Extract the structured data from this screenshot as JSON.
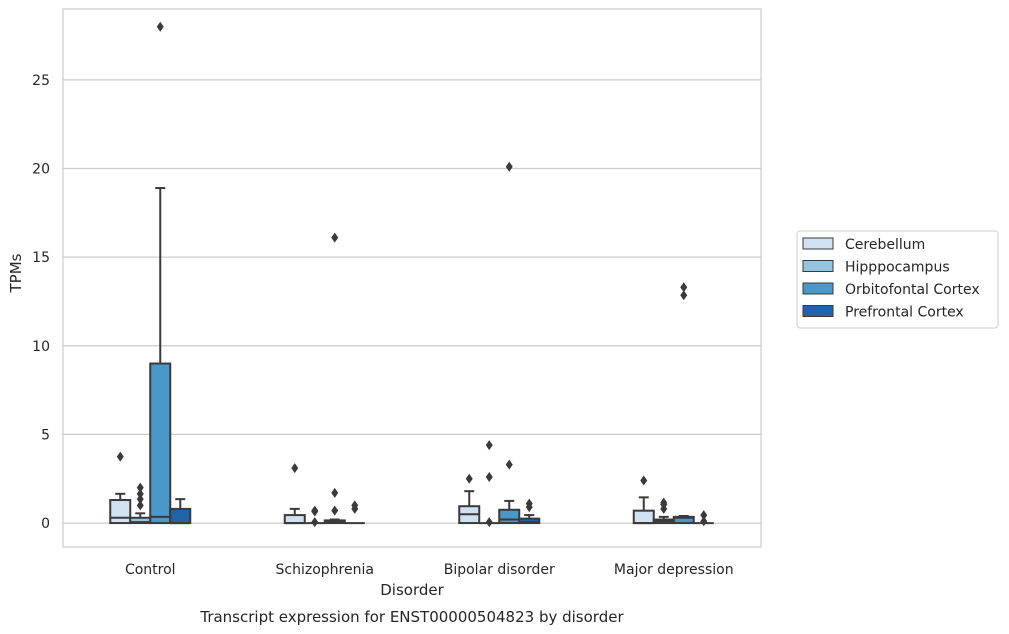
{
  "chart_data": {
    "type": "box",
    "caption": "Transcript expression for ENST00000504823 by disorder",
    "xlabel": "Disorder",
    "ylabel": "TPMs",
    "ylim": [
      -1.35,
      29.0
    ],
    "yticks": [
      0,
      5,
      10,
      15,
      20,
      25
    ],
    "grid": "horizontal",
    "legend_position": "right",
    "categories": [
      "Control",
      "Schizophrenia",
      "Bipolar disorder",
      "Major depression"
    ],
    "series": [
      {
        "name": "Cerebellum",
        "color": "#d0e1f2",
        "boxes": [
          {
            "whislo": 0,
            "q1": 0,
            "med": 0.3,
            "q3": 1.3,
            "whishi": 1.65,
            "fliers": [
              3.75
            ]
          },
          {
            "whislo": 0,
            "q1": 0,
            "med": 0,
            "q3": 0.45,
            "whishi": 0.8,
            "fliers": [
              3.1
            ]
          },
          {
            "whislo": 0,
            "q1": 0,
            "med": 0.5,
            "q3": 0.95,
            "whishi": 1.8,
            "fliers": [
              2.5
            ]
          },
          {
            "whislo": 0,
            "q1": 0,
            "med": 0,
            "q3": 0.7,
            "whishi": 1.45,
            "fliers": [
              2.4
            ]
          }
        ]
      },
      {
        "name": "Hipppocampus",
        "color": "#94c4df",
        "boxes": [
          {
            "whislo": 0,
            "q1": 0,
            "med": 0.05,
            "q3": 0.3,
            "whishi": 0.55,
            "fliers": [
              1.0,
              1.35,
              1.65,
              2.0
            ]
          },
          {
            "whislo": 0,
            "q1": 0,
            "med": 0,
            "q3": 0,
            "whishi": 0,
            "fliers": [
              0.05,
              0.65,
              0.7
            ]
          },
          {
            "whislo": 0,
            "q1": 0,
            "med": 0,
            "q3": 0,
            "whishi": 0,
            "fliers": [
              0.05,
              2.6,
              4.4
            ]
          },
          {
            "whislo": 0,
            "q1": 0,
            "med": 0.1,
            "q3": 0.2,
            "whishi": 0.35,
            "fliers": [
              0.8,
              1.05,
              1.15
            ]
          }
        ]
      },
      {
        "name": "Orbitofontal Cortex",
        "color": "#4a98c9",
        "boxes": [
          {
            "whislo": 0,
            "q1": 0,
            "med": 0.35,
            "q3": 9.0,
            "whishi": 18.9,
            "fliers": [
              28.0
            ]
          },
          {
            "whislo": 0,
            "q1": 0,
            "med": 0.05,
            "q3": 0.15,
            "whishi": 0.2,
            "fliers": [
              0.7,
              1.7,
              16.1
            ]
          },
          {
            "whislo": 0,
            "q1": 0,
            "med": 0.2,
            "q3": 0.75,
            "whishi": 1.25,
            "fliers": [
              3.3,
              20.1
            ]
          },
          {
            "whislo": 0,
            "q1": 0,
            "med": 0.3,
            "q3": 0.35,
            "whishi": 0.4,
            "fliers": [
              12.85,
              13.3
            ]
          }
        ]
      },
      {
        "name": "Prefrontal Cortex",
        "color": "#2163aa",
        "boxes": [
          {
            "whislo": 0,
            "q1": 0,
            "med": 0,
            "q3": 0.8,
            "whishi": 1.35,
            "fliers": []
          },
          {
            "whislo": 0,
            "q1": 0,
            "med": 0,
            "q3": 0,
            "whishi": 0,
            "fliers": [
              0.8,
              1.0
            ]
          },
          {
            "whislo": 0,
            "q1": 0,
            "med": 0.05,
            "q3": 0.25,
            "whishi": 0.45,
            "fliers": [
              0.9,
              1.1
            ]
          },
          {
            "whislo": 0,
            "q1": 0,
            "med": 0,
            "q3": 0,
            "whishi": 0,
            "fliers": [
              0.1,
              0.45
            ]
          }
        ]
      }
    ]
  }
}
